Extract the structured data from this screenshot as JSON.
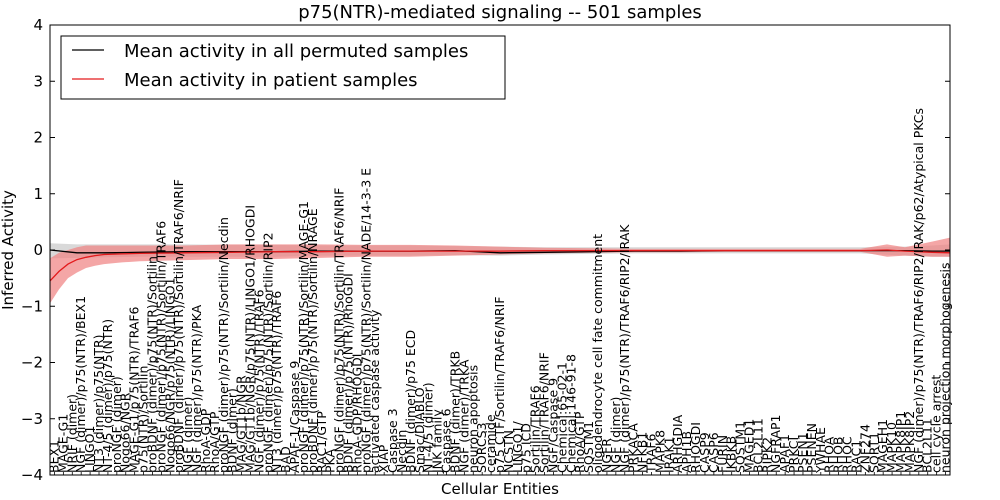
{
  "chart_data": {
    "type": "line",
    "title": "p75(NTR)-mediated signaling -- 501 samples",
    "xlabel": "Cellular Entities",
    "ylabel": "Inferred Activity",
    "ylim": [
      -4,
      4
    ],
    "yticks": [
      -4,
      -3,
      -2,
      -1,
      0,
      1,
      2,
      3,
      4
    ],
    "grid": false,
    "legend_position": "top-left",
    "colors": {
      "permuted_line": "#000000",
      "permuted_band": "#cccccc",
      "patient_line": "#e31a1c",
      "patient_band": "#f08080"
    },
    "categories": [
      "BEX1",
      "MAGE-G1",
      "NRIF (dimer)",
      "NGF (dimer)/p75(NTR)/BEX1",
      "LINGO1",
      "NT3 (dimer)/p75(NTR)",
      "NT-4/5 (dimer)/p75(NTR)",
      "proNGF (dimer)",
      "Nogo66/NGR",
      "MAGE-G1/p75(NTR)/TRAF6",
      "p75(NTR)/Sortilin",
      "proBDNF (dimer)/p75(NTR)/Sortilin",
      "proNGF (dimer)/p75(NTR)/Sortilin/TRAF6",
      "Nogo66/NGR/p75(NTR)/LINGO1",
      "proBDNF (dimer)/p75(NTR)/Sortilin/TRAF6/NRIF",
      "NGF (dimer)",
      "NGF (dimer)/p75(NTR)/PKA",
      "RhoA-GDP",
      "RhoA/GTP",
      "proNGF (dimer)/p75(NTR)/Sortilin/Necdin",
      "BDNF (dimer)",
      "MAG/GT1b/NGR",
      "MAG/GT1b/NGR/p75(NTR)/LINGO1/RHOGDI",
      "NGF (dimer)/p75(NTR)/TRAF6",
      "proNGF (dimer)/p75(NTR)/Sortilin/RIP2",
      "NT3 (dimer)/p75(NTR)/TRAF6",
      "BAD",
      "APAF-1/Caspase 9",
      "proNGF (dimer)/p75(NTR)/Sortilin/MAGE-G1",
      "proBDNF (dimer)/p75(NTR)/Sortilin/NRAGE",
      "RAC1/GTP",
      "PKA",
      "proNGF (dimer)/p75(NTR)/Sortilin/TRAF6/NRIF",
      "BDNF (dimer)/p75(NTR)/RhoGDI",
      "RhoA-GDP/RHOGDI",
      "proNGF (dimer)/p75(NTR)/Sortilin/NADE/14-3-3 E",
      "activated caspase activity",
      "XIAP",
      "Caspase 3",
      "Necdin",
      "BDNF (dimer)/p75 ECD",
      "Smac/DIABLO",
      "NT-4/5 (dimer)",
      "JNK family",
      "Caspase 6",
      "BDNF (dimer)/TRKB",
      "NGF (dimer)/TRKA",
      "neuron apoptosis",
      "SORCS3",
      "ceramide",
      "p75 CTF/Sortilin/TRAF6/NRIF",
      "NCSTN",
      "LINGO1/",
      "p75 ICD",
      "Sortilin/TRAF6",
      "Sortilin/TRAF6/NRIF",
      "NGF/Caspase 9",
      "Chemical:65-02-1",
      "Chemical:146-91-8",
      "RhoA/GTP",
      "SQSTM1",
      "oligodendrocyte cell fate commitment",
      "NGFR",
      "NGF (dimer)",
      "NGF (dimer)/p75(NTR)/TRAF6/RIP2/IRAK",
      "PRKACA",
      "NFKB1",
      "TRAF6",
      "MAPK8",
      "IRAK1",
      "ARHGDIA",
      "APH1B",
      "RHOGDI",
      "CASP9",
      "CASP6",
      "FURIN",
      "IKBKB",
      "SQSTM1",
      "MAGED1",
      "BCL2L11",
      "RIPK2",
      "NGFRAP1",
      "APAF1",
      "PRKCI",
      "PSEN1",
      "PSENEN",
      "YWHAE",
      "RHOA",
      "RHOB",
      "RHOC",
      "RAC1",
      "ZNF274",
      "SORT1",
      "MAGEH1",
      "MAPK10",
      "MAPK8IP1",
      "MAPK8IP2",
      "NGF (dimer)/p75(NTR)/TRAF6/RIP2/IRAK/p62/Atypical PKCs",
      "BCL2L11",
      "cell cycle arrest",
      "neuron projection morphogenesis"
    ],
    "series": [
      {
        "name": "Mean activity in all permuted samples",
        "x": [
          0,
          3,
          6,
          10,
          15,
          20,
          25,
          30,
          35,
          40,
          45,
          50,
          55,
          60,
          65,
          70,
          75,
          80,
          85,
          90,
          95,
          98,
          100
        ],
        "values": [
          0.0,
          -0.05,
          -0.05,
          -0.04,
          -0.03,
          -0.03,
          -0.03,
          -0.02,
          -0.02,
          -0.02,
          -0.01,
          -0.05,
          -0.04,
          -0.03,
          -0.02,
          -0.02,
          -0.01,
          -0.01,
          -0.01,
          -0.01,
          -0.01,
          -0.02,
          -0.02
        ],
        "band_low": [
          -0.15,
          -0.14,
          -0.13,
          -0.12,
          -0.12,
          -0.12,
          -0.12,
          -0.1,
          -0.1,
          -0.1,
          -0.09,
          -0.1,
          -0.08,
          -0.07,
          -0.06,
          -0.06,
          -0.06,
          -0.06,
          -0.06,
          -0.06,
          -0.1,
          -0.12,
          -0.12
        ],
        "band_high": [
          0.12,
          0.1,
          0.1,
          0.1,
          0.1,
          0.09,
          0.09,
          0.08,
          0.08,
          0.08,
          0.07,
          0.06,
          0.05,
          0.05,
          0.05,
          0.05,
          0.05,
          0.05,
          0.05,
          0.05,
          0.06,
          0.08,
          0.1
        ]
      },
      {
        "name": "Mean activity in patient samples",
        "x": [
          0,
          1,
          2,
          3,
          4,
          5,
          6,
          8,
          10,
          15,
          20,
          25,
          30,
          35,
          40,
          45,
          50,
          55,
          60,
          65,
          70,
          75,
          80,
          85,
          90,
          93,
          95,
          98,
          100
        ],
        "values": [
          -0.55,
          -0.38,
          -0.25,
          -0.17,
          -0.13,
          -0.1,
          -0.08,
          -0.07,
          -0.06,
          -0.05,
          -0.04,
          -0.03,
          -0.03,
          -0.02,
          -0.02,
          -0.02,
          -0.02,
          -0.01,
          -0.01,
          -0.01,
          -0.01,
          -0.01,
          -0.01,
          -0.01,
          -0.01,
          0.0,
          -0.02,
          -0.04,
          -0.05
        ],
        "band_low": [
          -0.95,
          -0.7,
          -0.5,
          -0.4,
          -0.32,
          -0.28,
          -0.25,
          -0.22,
          -0.2,
          -0.18,
          -0.16,
          -0.16,
          -0.14,
          -0.12,
          -0.12,
          -0.1,
          -0.08,
          -0.06,
          -0.05,
          -0.04,
          -0.04,
          -0.03,
          -0.03,
          -0.03,
          -0.03,
          -0.12,
          -0.1,
          -0.12,
          -0.12
        ],
        "band_high": [
          -0.15,
          -0.05,
          0.0,
          0.05,
          0.08,
          0.08,
          0.08,
          0.08,
          0.08,
          0.08,
          0.1,
          0.1,
          0.1,
          0.09,
          0.09,
          0.08,
          0.06,
          0.04,
          0.03,
          0.02,
          0.02,
          0.02,
          0.02,
          0.02,
          0.02,
          0.1,
          0.05,
          0.15,
          0.22
        ]
      }
    ]
  }
}
